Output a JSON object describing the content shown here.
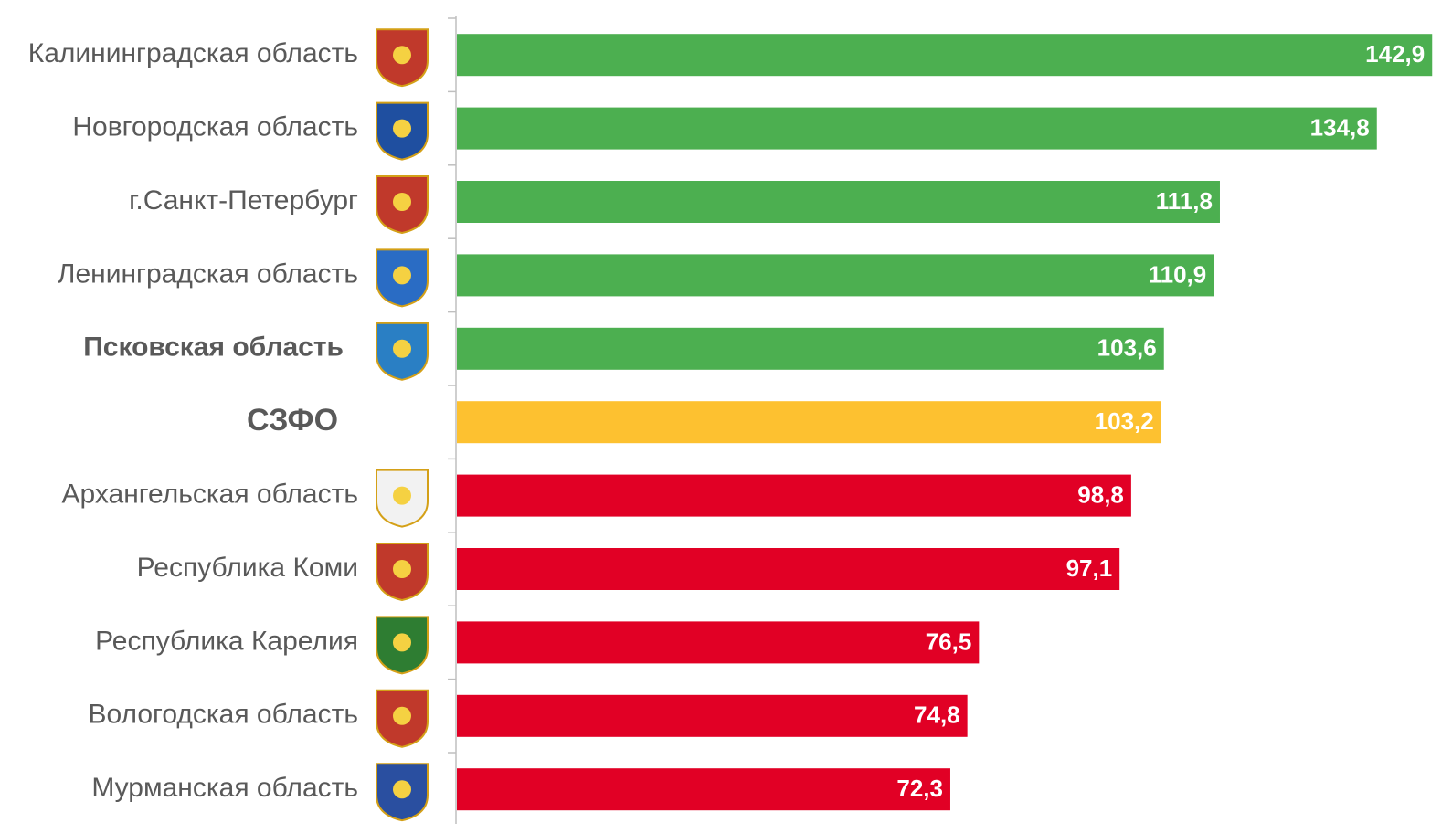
{
  "chart_data": {
    "type": "hbar",
    "categories": [
      "Калининградская область",
      "Новгородская область",
      "г.Санкт-Петербург",
      "Ленинградская область",
      "Псковская область",
      "СЗФО",
      "Архангельская область",
      "Республика Коми",
      "Республика Карелия",
      "Вологодская область",
      "Мурманская область"
    ],
    "values": [
      142.9,
      134.8,
      111.8,
      110.9,
      103.6,
      103.2,
      98.8,
      97.1,
      76.5,
      74.8,
      72.3
    ],
    "value_labels": [
      "142,9",
      "134,8",
      "111,8",
      "110,9",
      "103,6",
      "103,2",
      "98,8",
      "97,1",
      "76,5",
      "74,8",
      "72,3"
    ],
    "colors": [
      "#4caf50",
      "#4caf50",
      "#4caf50",
      "#4caf50",
      "#4caf50",
      "#fdc130",
      "#e10025",
      "#e10025",
      "#e10025",
      "#e10025",
      "#e10025"
    ],
    "xlim": [
      0,
      143
    ]
  }
}
